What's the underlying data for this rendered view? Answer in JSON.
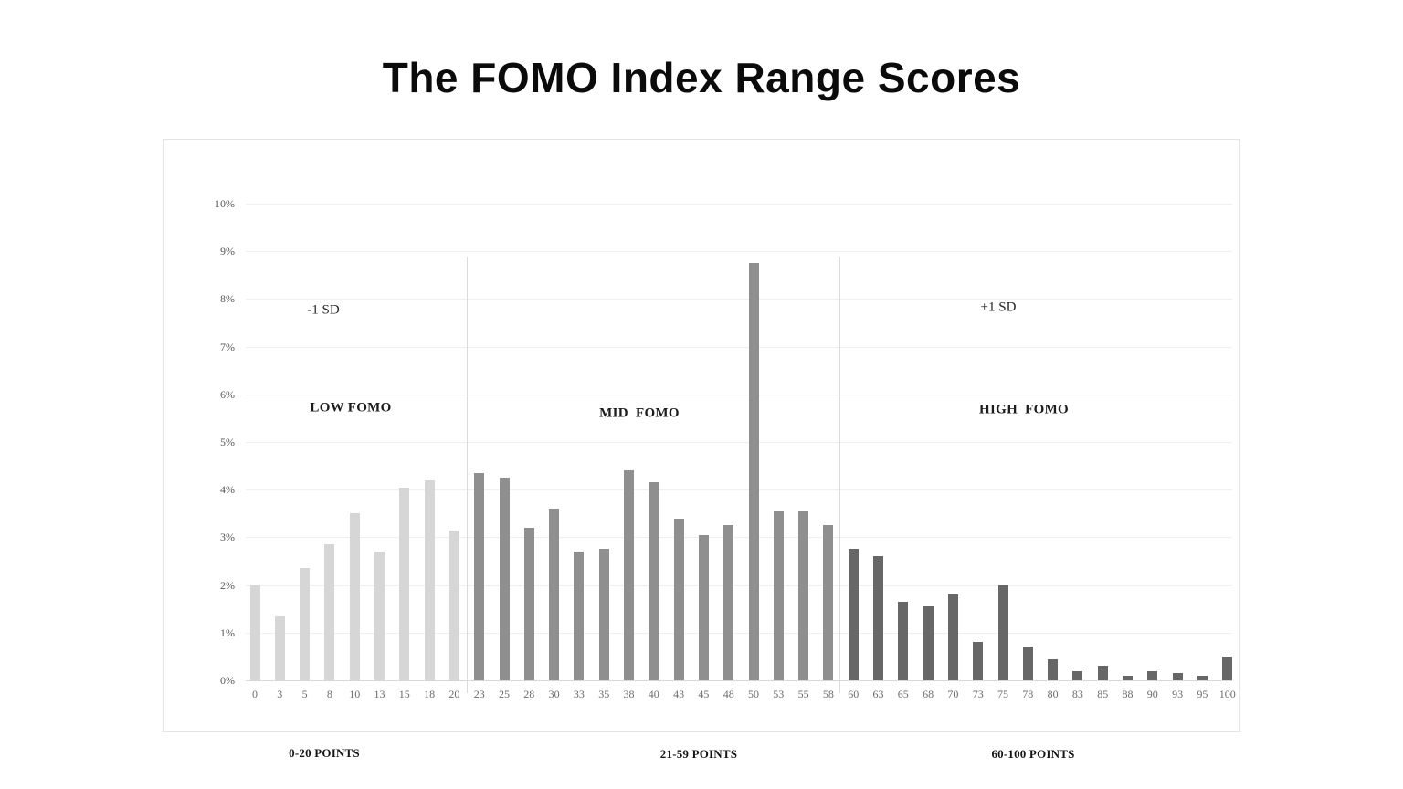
{
  "title": "The FOMO Index Range Scores",
  "chart_data": {
    "type": "bar",
    "title": "The FOMO Index Range Scores",
    "xlabel": "",
    "ylabel": "",
    "ylim": [
      0,
      10
    ],
    "grid": true,
    "legend_position": "none",
    "ytick_labels": [
      "0%",
      "1%",
      "2%",
      "3%",
      "4%",
      "5%",
      "6%",
      "7%",
      "8%",
      "9%",
      "10%"
    ],
    "categories": [
      0,
      3,
      5,
      8,
      10,
      13,
      15,
      18,
      20,
      23,
      25,
      28,
      30,
      33,
      35,
      38,
      40,
      43,
      45,
      48,
      50,
      53,
      55,
      58,
      60,
      63,
      65,
      68,
      70,
      73,
      75,
      78,
      80,
      83,
      85,
      88,
      90,
      93,
      95,
      100
    ],
    "values": [
      2.0,
      1.35,
      2.35,
      2.85,
      3.5,
      2.7,
      4.05,
      4.2,
      3.15,
      4.35,
      4.25,
      3.2,
      3.6,
      2.7,
      2.75,
      4.4,
      4.15,
      3.4,
      3.05,
      3.25,
      8.75,
      3.55,
      3.55,
      3.25,
      2.75,
      2.6,
      1.65,
      1.55,
      1.8,
      0.8,
      2.0,
      0.7,
      0.45,
      0.2,
      0.3,
      0.1,
      0.2,
      0.15,
      0.1,
      0.5
    ],
    "annotations": [
      {
        "text": "-1 SD"
      },
      {
        "text": "+1 SD"
      }
    ],
    "regions": [
      {
        "label": "LOW FOMO",
        "axis_label": "0-20 POINTS",
        "bar_color": "#d6d6d6",
        "category_span": [
          0,
          20
        ]
      },
      {
        "label": "MID  FOMO",
        "axis_label": "21-59 POINTS",
        "bar_color": "#8f8f8f",
        "category_span": [
          21,
          59
        ]
      },
      {
        "label": "HIGH  FOMO",
        "axis_label": "60-100 POINTS",
        "bar_color": "#676767",
        "category_span": [
          60,
          100
        ]
      }
    ]
  },
  "colors": {
    "gridline": "#efefef",
    "baseline": "#d8d8d8",
    "divider": "#dadada",
    "panel_border": "#e4e4e4",
    "axis_text": "#5f5f5f",
    "title_text": "#0b0b0b"
  }
}
